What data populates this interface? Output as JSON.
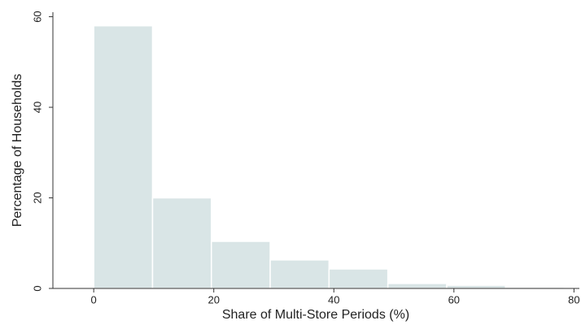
{
  "chart_data": {
    "type": "histogram",
    "xlabel": "Share of Multi-Store Periods (%)",
    "ylabel": "Percentage of Households",
    "bins": [
      0,
      9.8,
      19.6,
      29.4,
      39.2,
      49,
      58.8,
      68.6,
      78.4
    ],
    "values": [
      58,
      20,
      10.4,
      6.3,
      4.3,
      1.1,
      0.7,
      0.3
    ],
    "color": "#d9e5e6",
    "xlim": [
      -6.8,
      80.9
    ],
    "ylim": [
      0,
      61
    ],
    "xticks": [
      0,
      20,
      40,
      60,
      80
    ],
    "yticks": [
      0,
      20,
      40,
      60
    ]
  }
}
